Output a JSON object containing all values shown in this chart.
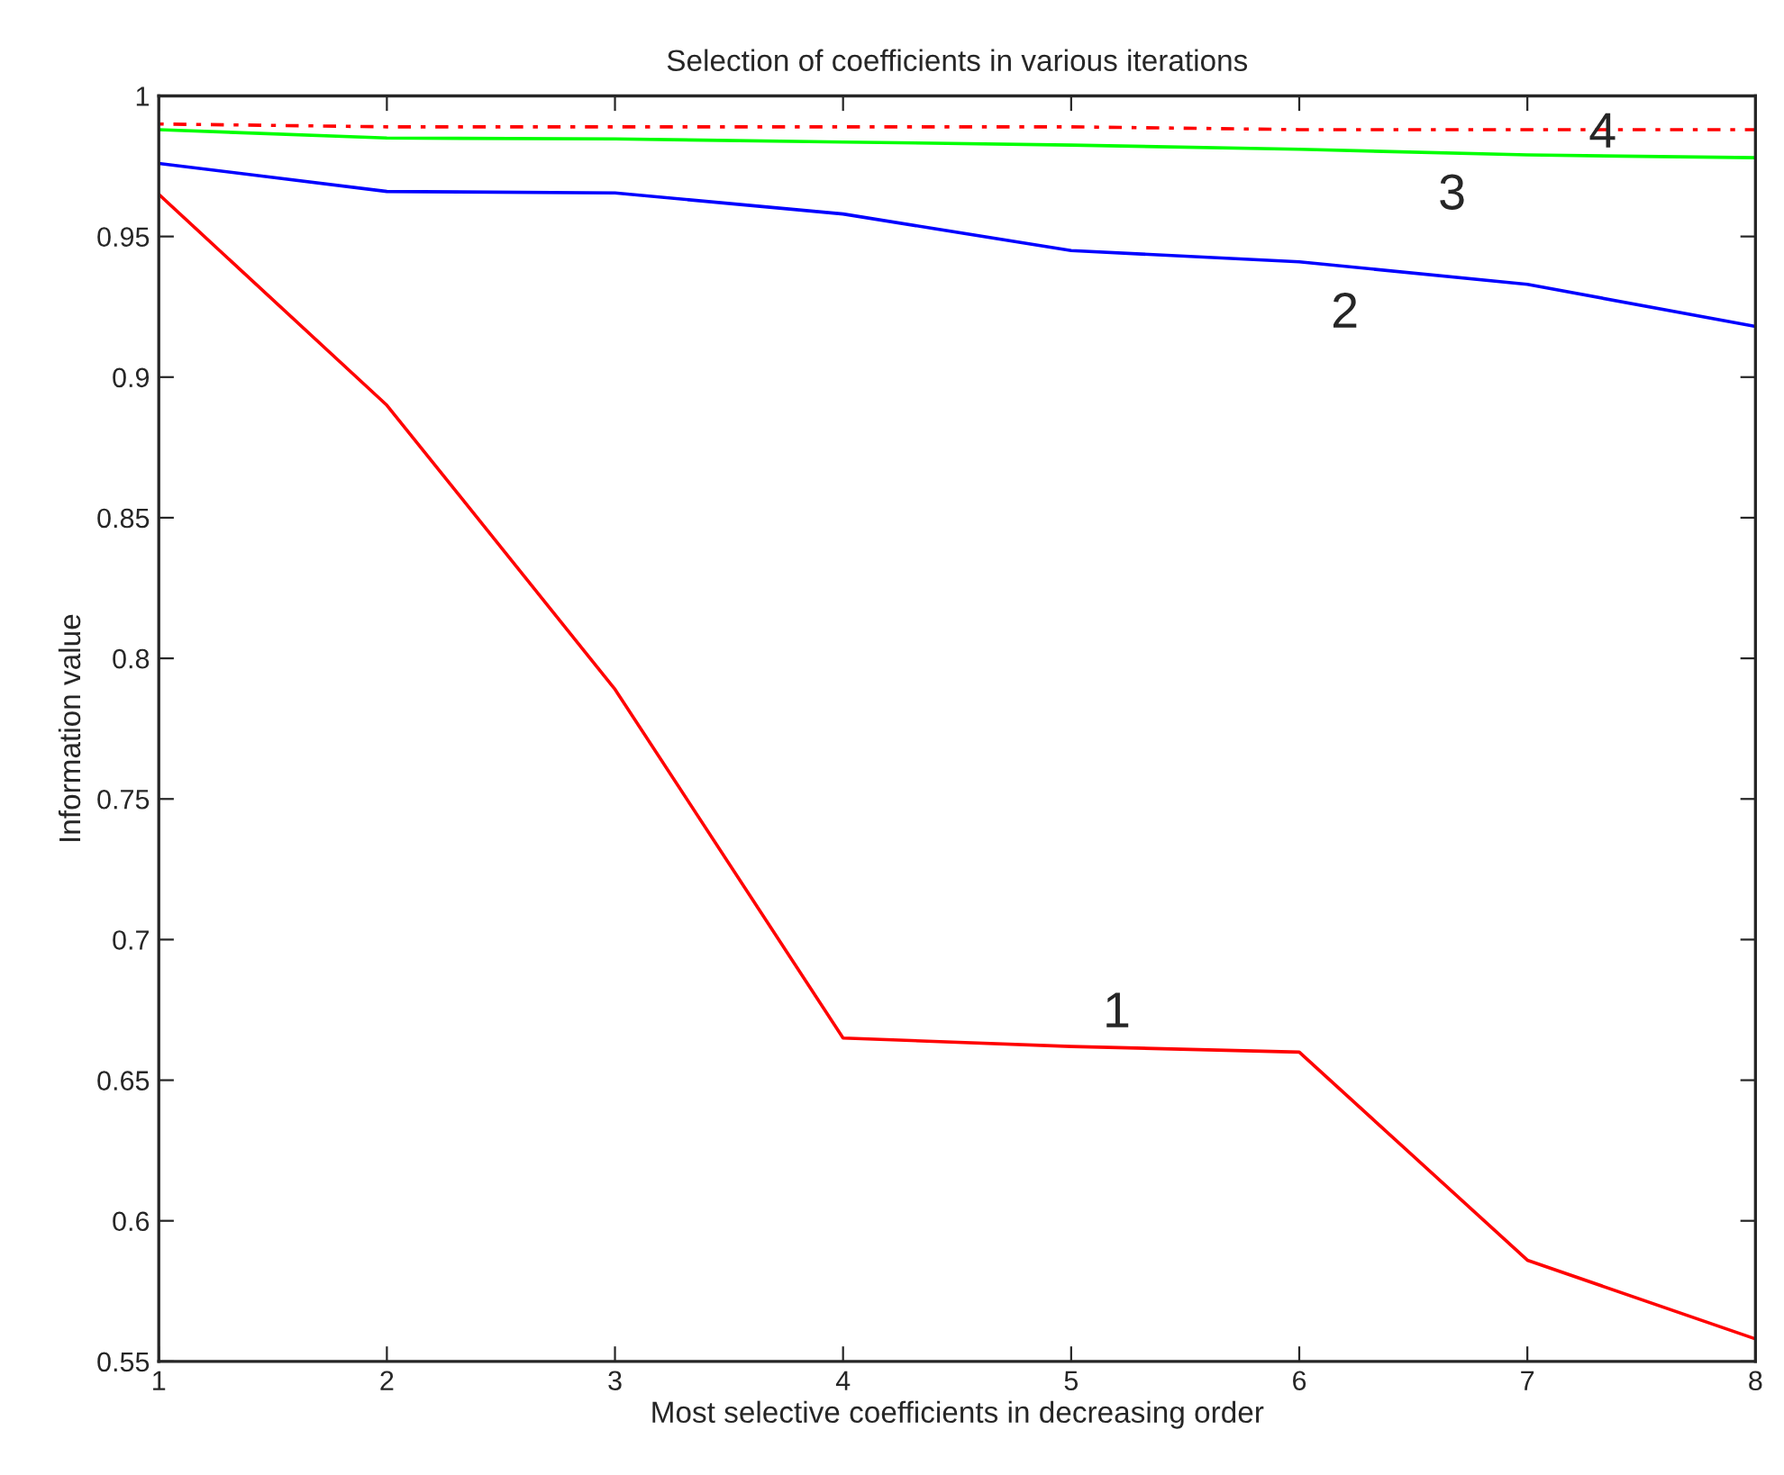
{
  "chart_data": {
    "type": "line",
    "title": "Selection of coefficients in various iterations",
    "xlabel": "Most selective coefficients in decreasing order",
    "ylabel": "Information value",
    "x": [
      1,
      2,
      3,
      4,
      5,
      6,
      7,
      8
    ],
    "series": [
      {
        "color": "#ff0000",
        "values": [
          0.965,
          0.89,
          0.789,
          0.665,
          0.662,
          0.66,
          0.586,
          0.558
        ]
      },
      {
        "color": "#0000ff",
        "values": [
          0.976,
          0.966,
          0.9655,
          0.958,
          0.945,
          0.941,
          0.933,
          0.918
        ]
      },
      {
        "color": "#00ff00",
        "values": [
          0.988,
          0.985,
          0.9847,
          0.9836,
          0.9825,
          0.981,
          0.979,
          0.978
        ]
      },
      {
        "color": "#ff0000",
        "line_style": "dotted",
        "values": [
          0.99,
          0.989,
          0.989,
          0.989,
          0.989,
          0.988,
          0.988,
          0.988
        ]
      }
    ],
    "annotations": [
      {
        "text": "1",
        "x": 5.2,
        "y": 0.6616
      },
      {
        "text": "2",
        "x": 6.2,
        "y": 0.9394
      },
      {
        "text": "3",
        "x": 6.67,
        "y": 0.9797
      },
      {
        "text": "4",
        "x": 7.33,
        "y": 0.988
      }
    ],
    "xlim": [
      1,
      8
    ],
    "xticks": [
      1,
      2,
      3,
      4,
      5,
      6,
      7,
      8
    ],
    "ylim": [
      0.55,
      1
    ],
    "yticks": [
      0.55,
      0.6,
      0.65,
      0.7,
      0.75,
      0.8,
      0.85,
      0.9,
      0.95,
      1
    ],
    "grid": false
  }
}
